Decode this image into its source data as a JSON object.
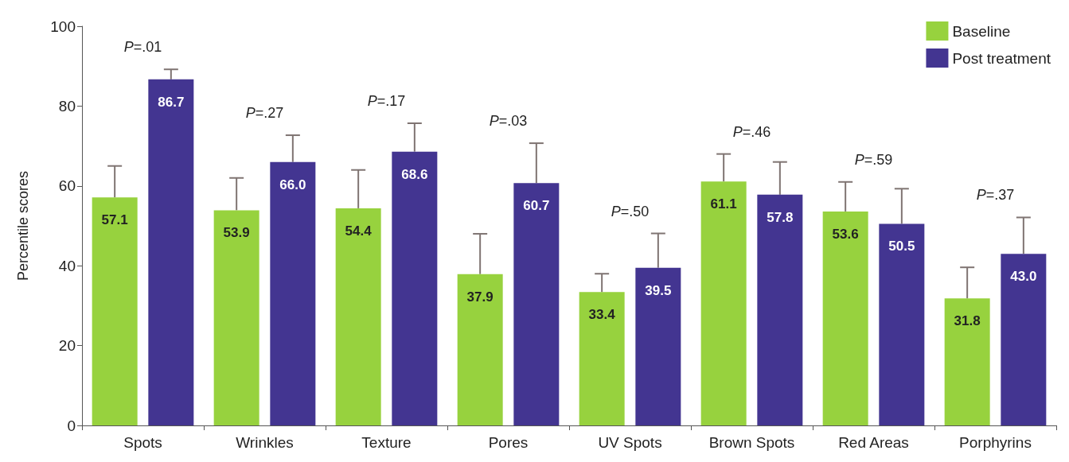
{
  "chart_data": {
    "type": "bar",
    "ylabel": "Percentile scores",
    "categories": [
      "Spots",
      "Wrinkles",
      "Texture",
      "Pores",
      "UV Spots",
      "Brown Spots",
      "Red Areas",
      "Porphyrins"
    ],
    "series": [
      {
        "name": "Baseline",
        "color": "#97d23e",
        "values": [
          57.1,
          53.9,
          54.4,
          37.9,
          33.4,
          61.1,
          53.6,
          31.8
        ],
        "value_labels": [
          "57.1",
          "53.9",
          "54.4",
          "37.9",
          "33.4",
          "61.1",
          "53.6",
          "31.8"
        ],
        "errors": [
          [
            57.1,
            65
          ],
          [
            53.9,
            62
          ],
          [
            54.4,
            64
          ],
          [
            37.9,
            48
          ],
          [
            33.4,
            38
          ],
          [
            61.1,
            68
          ],
          [
            53.6,
            61
          ],
          [
            31.8,
            39.6
          ]
        ]
      },
      {
        "name": "Post treatment",
        "color": "#433591",
        "values": [
          86.7,
          66.0,
          68.6,
          60.7,
          39.5,
          57.8,
          50.5,
          43.0
        ],
        "value_labels": [
          "86.7",
          "66.0",
          "68.6",
          "60.7",
          "39.5",
          "57.8",
          "50.5",
          "43.0"
        ],
        "errors": [
          [
            86.7,
            89.2
          ],
          [
            66.0,
            72.7
          ],
          [
            68.6,
            75.7
          ],
          [
            60.7,
            70.7
          ],
          [
            39.5,
            48.1
          ],
          [
            57.8,
            66
          ],
          [
            50.5,
            59.3
          ],
          [
            43.0,
            52.1
          ]
        ]
      }
    ],
    "ylim": [
      0,
      100
    ],
    "yticks": [
      0,
      20,
      40,
      60,
      80,
      100
    ],
    "grid": false,
    "legend": "top right",
    "annotations": [
      "P=.01",
      "P=.27",
      "P=.17",
      "P=.03",
      "P=.50",
      "P=.46",
      "P=.59",
      "P=.37"
    ]
  }
}
